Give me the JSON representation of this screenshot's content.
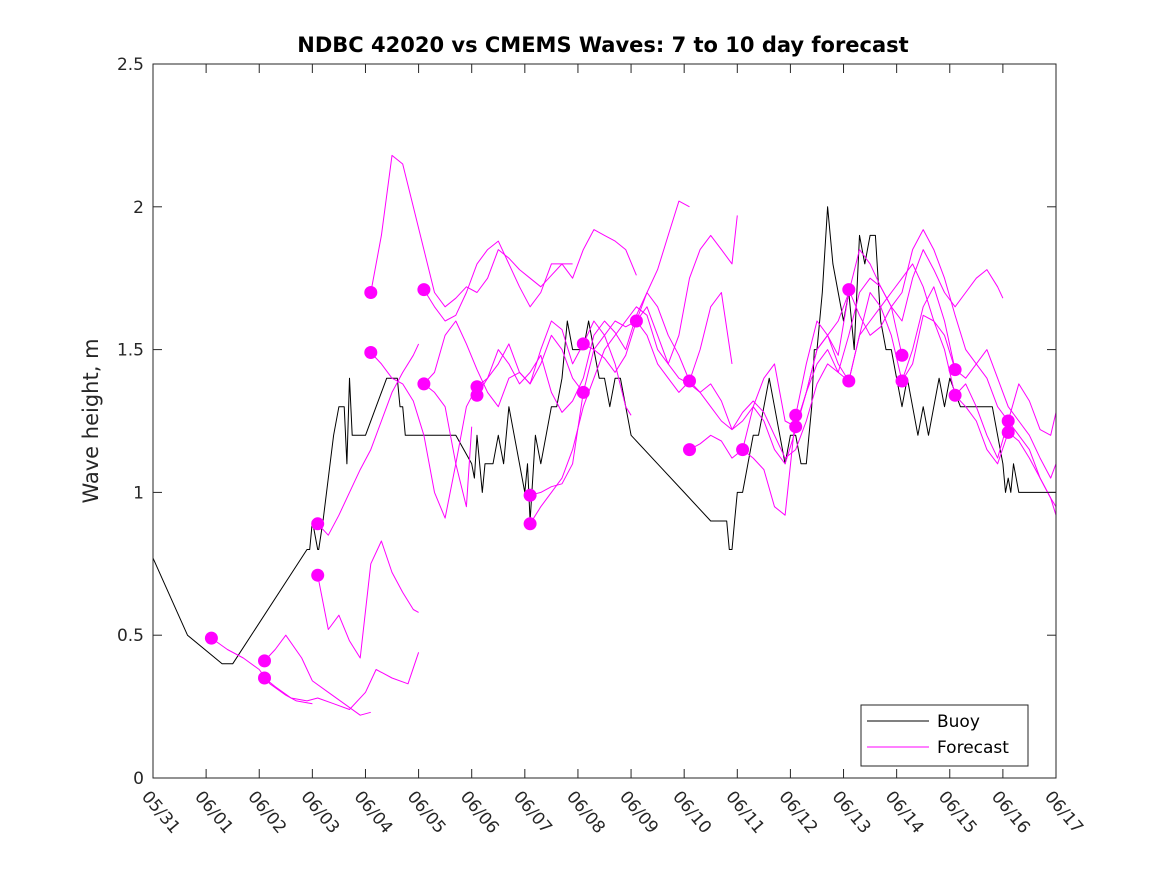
{
  "chart_data": {
    "type": "line",
    "title": "NDBC 42020 vs CMEMS Waves: 7 to 10 day forecast",
    "xlabel": "",
    "ylabel": "Wave height, m",
    "xlim": [
      "05/31",
      "06/17"
    ],
    "ylim": [
      0,
      2.5
    ],
    "x_tick_labels": [
      "05/31",
      "06/01",
      "06/02",
      "06/03",
      "06/04",
      "06/05",
      "06/06",
      "06/07",
      "06/08",
      "06/09",
      "06/10",
      "06/11",
      "06/12",
      "06/13",
      "06/14",
      "06/15",
      "06/16",
      "06/17"
    ],
    "y_tick_labels": [
      "0",
      "0.5",
      "1",
      "1.5",
      "2",
      "2.5"
    ],
    "y_ticks": [
      0,
      0.5,
      1,
      1.5,
      2,
      2.5
    ],
    "x_unit_note": "x values are days in June 2024 (05/31 = 0, 06/01 = 1, ...)",
    "grid": false,
    "legend": {
      "placement": "bottom-right",
      "entries": [
        "Buoy",
        "Forecast"
      ]
    },
    "colors": {
      "buoy": "#000000",
      "forecast": "#ff00ff"
    },
    "series": [
      {
        "name": "Buoy",
        "x": [
          0,
          0.65,
          1.3,
          1.5,
          2.9,
          2.95,
          3.0,
          3.1,
          3.12,
          3.2,
          3.4,
          3.5,
          3.6,
          3.65,
          3.7,
          3.75,
          3.85,
          3.9,
          4.0,
          4.2,
          4.4,
          4.6,
          4.65,
          4.7,
          4.75,
          4.8,
          4.85,
          5.0,
          5.2,
          5.4,
          5.5,
          5.7,
          6.0,
          6.05,
          6.1,
          6.2,
          6.25,
          6.3,
          6.4,
          6.5,
          6.6,
          6.7,
          6.8,
          6.9,
          7.0,
          7.05,
          7.1,
          7.2,
          7.3,
          7.4,
          7.5,
          7.6,
          7.7,
          7.8,
          7.9,
          8.0,
          8.1,
          8.2,
          8.3,
          8.4,
          8.5,
          8.6,
          8.7,
          8.8,
          9.0,
          9.5,
          10.0,
          10.5,
          10.8,
          10.85,
          10.9,
          10.95,
          11.0,
          11.1,
          11.2,
          11.3,
          11.4,
          11.5,
          11.6,
          11.7,
          11.8,
          11.9,
          12.0,
          12.1,
          12.2,
          12.3,
          12.4,
          12.45,
          12.5,
          12.6,
          12.7,
          12.8,
          12.9,
          13.0,
          13.1,
          13.2,
          13.3,
          13.4,
          13.5,
          13.6,
          13.7,
          13.8,
          13.9,
          14.0,
          14.1,
          14.2,
          14.3,
          14.4,
          14.5,
          14.6,
          14.7,
          14.8,
          14.9,
          15.0,
          15.2,
          15.4,
          15.6,
          15.8,
          15.9,
          16.0,
          16.05,
          16.1,
          16.15,
          16.2,
          16.3,
          16.4,
          16.6,
          17.0
        ],
        "values": [
          0.77,
          0.5,
          0.4,
          0.4,
          0.8,
          0.8,
          0.9,
          0.8,
          0.8,
          0.9,
          1.2,
          1.3,
          1.3,
          1.1,
          1.4,
          1.2,
          1.2,
          1.2,
          1.2,
          1.3,
          1.4,
          1.4,
          1.3,
          1.3,
          1.2,
          1.2,
          1.2,
          1.2,
          1.2,
          1.2,
          1.2,
          1.2,
          1.1,
          1.05,
          1.2,
          1.0,
          1.1,
          1.1,
          1.1,
          1.2,
          1.1,
          1.3,
          1.2,
          1.1,
          1.0,
          1.1,
          0.9,
          1.2,
          1.1,
          1.2,
          1.3,
          1.3,
          1.4,
          1.6,
          1.5,
          1.5,
          1.5,
          1.6,
          1.5,
          1.4,
          1.4,
          1.3,
          1.4,
          1.4,
          1.2,
          1.1,
          1.0,
          0.9,
          0.9,
          0.8,
          0.8,
          0.9,
          1.0,
          1.0,
          1.1,
          1.2,
          1.2,
          1.3,
          1.4,
          1.3,
          1.2,
          1.1,
          1.2,
          1.2,
          1.1,
          1.1,
          1.3,
          1.5,
          1.5,
          1.7,
          2.0,
          1.8,
          1.7,
          1.6,
          1.7,
          1.5,
          1.9,
          1.8,
          1.9,
          1.9,
          1.6,
          1.5,
          1.5,
          1.4,
          1.3,
          1.4,
          1.3,
          1.2,
          1.3,
          1.2,
          1.3,
          1.4,
          1.3,
          1.4,
          1.3,
          1.3,
          1.3,
          1.3,
          1.2,
          1.1,
          1.0,
          1.05,
          1.0,
          1.1,
          1.0,
          1.0,
          1.0,
          1.0
        ]
      },
      {
        "name": "Forecast",
        "x": [
          1.1,
          1.4,
          1.7,
          2.0,
          2.2,
          2.5,
          2.7,
          3.0
        ],
        "values": [
          0.49,
          0.45,
          0.42,
          0.38,
          0.33,
          0.29,
          0.27,
          0.26
        ]
      },
      {
        "x": [
          2.1,
          2.3,
          2.5,
          2.8,
          3.0,
          3.3,
          3.6,
          3.9,
          4.1
        ],
        "values": [
          0.41,
          0.45,
          0.5,
          0.42,
          0.34,
          0.3,
          0.26,
          0.22,
          0.23
        ]
      },
      {
        "x": [
          2.1,
          2.3,
          2.6,
          2.9,
          3.1,
          3.4,
          3.7,
          4.0,
          4.2,
          4.5,
          4.8,
          5.0
        ],
        "values": [
          0.35,
          0.32,
          0.28,
          0.27,
          0.28,
          0.26,
          0.24,
          0.3,
          0.38,
          0.35,
          0.33,
          0.44
        ]
      },
      {
        "x": [
          3.1,
          3.3,
          3.5,
          3.7,
          3.9,
          4.1,
          4.3,
          4.5,
          4.7,
          4.9,
          5.0
        ],
        "values": [
          0.71,
          0.52,
          0.57,
          0.48,
          0.42,
          0.75,
          0.83,
          0.72,
          0.65,
          0.59,
          0.58
        ]
      },
      {
        "x": [
          3.1,
          3.3,
          3.5,
          3.7,
          3.9,
          4.1,
          4.3,
          4.5,
          4.7,
          4.9,
          5.0
        ],
        "values": [
          0.89,
          0.85,
          0.92,
          1.0,
          1.08,
          1.15,
          1.25,
          1.35,
          1.42,
          1.48,
          1.52
        ]
      },
      {
        "x": [
          4.1,
          4.3,
          4.5,
          4.7,
          4.9,
          5.1,
          5.3,
          5.5,
          5.7,
          5.9,
          6.1,
          6.3,
          6.5,
          6.7,
          6.9,
          7.1,
          7.3,
          7.5,
          7.7,
          7.9
        ],
        "values": [
          1.7,
          1.9,
          2.18,
          2.15,
          2.0,
          1.85,
          1.7,
          1.65,
          1.68,
          1.72,
          1.7,
          1.75,
          1.85,
          1.82,
          1.78,
          1.75,
          1.72,
          1.76,
          1.8,
          1.8
        ]
      },
      {
        "x": [
          4.1,
          4.3,
          4.5,
          4.7,
          4.9,
          5.1,
          5.3,
          5.5,
          5.7,
          5.9,
          6.1,
          6.3,
          6.5,
          6.7,
          6.9,
          7.1,
          7.3,
          7.5,
          7.7,
          7.9,
          8.1,
          8.3,
          8.5,
          8.7,
          8.9,
          9.0
        ],
        "values": [
          1.49,
          1.45,
          1.4,
          1.38,
          1.32,
          1.2,
          1.0,
          0.91,
          1.1,
          1.3,
          1.37,
          1.4,
          1.45,
          1.52,
          1.42,
          1.38,
          1.5,
          1.6,
          1.57,
          1.45,
          1.52,
          1.6,
          1.55,
          1.45,
          1.3,
          1.27
        ]
      },
      {
        "x": [
          5.1,
          5.3,
          5.5,
          5.7,
          5.9,
          6.1,
          6.3,
          6.5,
          6.7,
          6.9,
          7.1,
          7.3,
          7.5,
          7.7,
          7.9,
          8.1,
          8.3,
          8.5,
          8.7,
          8.9,
          9.1
        ],
        "values": [
          1.71,
          1.65,
          1.6,
          1.62,
          1.7,
          1.8,
          1.85,
          1.88,
          1.8,
          1.72,
          1.65,
          1.7,
          1.8,
          1.8,
          1.75,
          1.85,
          1.92,
          1.9,
          1.88,
          1.85,
          1.76
        ]
      },
      {
        "x": [
          5.1,
          5.3,
          5.5,
          5.7,
          5.9,
          6.1,
          6.3,
          6.5,
          6.7,
          6.9,
          7.1,
          7.3,
          7.5,
          7.7,
          7.9,
          8.1
        ],
        "values": [
          1.38,
          1.42,
          1.55,
          1.6,
          1.52,
          1.43,
          1.35,
          1.3,
          1.4,
          1.42,
          1.38,
          1.45,
          1.55,
          1.5,
          1.4,
          1.35
        ]
      },
      {
        "x": [
          5.1,
          5.3,
          5.5,
          5.7,
          5.9,
          6.0
        ],
        "values": [
          1.38,
          1.35,
          1.3,
          1.1,
          0.95,
          1.23
        ]
      },
      {
        "x": [
          6.1,
          6.3,
          6.5,
          6.7,
          6.9,
          7.1,
          7.3,
          7.5,
          7.7,
          7.9,
          8.1,
          8.3,
          8.5,
          8.7,
          8.9,
          9.1,
          9.3,
          9.5,
          9.7,
          9.9,
          10.1
        ],
        "values": [
          1.34,
          1.4,
          1.5,
          1.45,
          1.38,
          1.42,
          1.48,
          1.35,
          1.28,
          1.32,
          1.4,
          1.55,
          1.6,
          1.56,
          1.5,
          1.62,
          1.7,
          1.78,
          1.9,
          2.02,
          2.0
        ]
      },
      {
        "x": [
          7.1,
          7.3,
          7.5,
          7.7,
          7.9,
          8.1,
          8.3,
          8.5,
          8.7,
          8.9,
          9.1,
          9.3,
          9.5,
          9.7,
          9.9,
          10.1,
          10.3,
          10.5,
          10.7,
          10.9,
          11.0
        ],
        "values": [
          0.89,
          0.95,
          1.0,
          1.05,
          1.15,
          1.3,
          1.4,
          1.5,
          1.55,
          1.6,
          1.65,
          1.62,
          1.5,
          1.45,
          1.55,
          1.75,
          1.85,
          1.9,
          1.85,
          1.8,
          1.97
        ]
      },
      {
        "x": [
          7.1,
          7.3,
          7.5,
          7.7,
          7.9,
          8.1,
          8.3,
          8.5,
          8.7,
          8.9,
          9.1,
          9.3,
          9.5,
          9.7,
          9.9,
          10.1,
          10.3,
          10.5,
          10.7,
          10.9
        ],
        "values": [
          0.99,
          1.0,
          1.02,
          1.03,
          1.1,
          1.35,
          1.5,
          1.55,
          1.6,
          1.58,
          1.6,
          1.55,
          1.45,
          1.4,
          1.35,
          1.39,
          1.5,
          1.65,
          1.7,
          1.45
        ]
      },
      {
        "x": [
          8.1,
          8.3,
          8.5,
          8.7,
          8.9,
          9.1,
          9.3,
          9.5,
          9.7,
          9.9,
          10.1,
          10.3,
          10.5,
          10.7,
          10.9,
          11.1,
          11.3,
          11.5,
          11.7,
          11.9,
          12.1,
          12.3,
          12.5,
          12.7,
          12.9,
          13.1
        ],
        "values": [
          1.52,
          1.5,
          1.47,
          1.42,
          1.48,
          1.6,
          1.65,
          1.55,
          1.45,
          1.4,
          1.38,
          1.35,
          1.38,
          1.32,
          1.22,
          1.25,
          1.3,
          1.25,
          1.15,
          1.1,
          1.22,
          1.35,
          1.5,
          1.55,
          1.6,
          1.7
        ]
      },
      {
        "x": [
          9.1,
          9.3,
          9.5,
          9.7,
          9.9,
          10.1,
          10.3,
          10.5,
          10.7,
          10.9,
          11.1,
          11.3,
          11.5,
          11.7,
          11.9,
          12.1,
          12.3,
          12.5,
          12.7,
          12.9,
          13.1,
          13.3,
          13.5,
          13.7,
          13.9,
          14.1
        ],
        "values": [
          1.6,
          1.7,
          1.65,
          1.55,
          1.48,
          1.39,
          1.35,
          1.3,
          1.25,
          1.22,
          1.28,
          1.32,
          1.28,
          1.2,
          1.12,
          1.15,
          1.25,
          1.38,
          1.45,
          1.42,
          1.55,
          1.7,
          1.75,
          1.72,
          1.65,
          1.48
        ]
      },
      {
        "x": [
          10.1,
          10.3,
          10.5,
          10.7,
          10.9,
          11.1,
          11.3,
          11.5,
          11.7,
          11.9,
          12.1,
          12.3,
          12.5,
          12.7,
          12.9,
          13.1,
          13.3,
          13.5,
          13.7,
          13.9,
          14.1,
          14.3,
          14.5,
          14.7,
          14.9,
          15.1
        ],
        "values": [
          1.15,
          1.17,
          1.2,
          1.18,
          1.12,
          1.15,
          1.3,
          1.4,
          1.45,
          1.25,
          1.23,
          1.35,
          1.5,
          1.55,
          1.45,
          1.39,
          1.55,
          1.7,
          1.65,
          1.55,
          1.39,
          1.45,
          1.62,
          1.6,
          1.55,
          1.43
        ]
      },
      {
        "x": [
          11.1,
          11.3,
          11.5,
          11.7,
          11.9,
          12.1,
          12.3,
          12.5,
          12.7,
          12.9,
          13.1,
          13.3,
          13.5,
          13.7,
          13.9,
          14.1,
          14.3,
          14.5,
          14.7,
          14.9,
          15.1,
          15.3,
          15.5,
          15.7,
          15.9,
          16.0
        ],
        "values": [
          1.15,
          1.12,
          1.08,
          0.95,
          0.92,
          1.27,
          1.45,
          1.6,
          1.55,
          1.48,
          1.7,
          1.85,
          1.8,
          1.72,
          1.65,
          1.6,
          1.75,
          1.85,
          1.78,
          1.7,
          1.65,
          1.7,
          1.75,
          1.78,
          1.72,
          1.68
        ]
      },
      {
        "x": [
          12.1,
          12.3,
          12.5,
          12.7,
          12.9,
          13.1,
          13.3,
          13.5,
          13.7,
          13.9,
          14.1,
          14.3,
          14.5,
          14.7,
          14.9,
          15.1,
          15.3,
          15.5,
          15.7,
          15.9,
          16.1
        ],
        "values": [
          1.23,
          1.35,
          1.45,
          1.5,
          1.42,
          1.39,
          1.55,
          1.6,
          1.65,
          1.7,
          1.75,
          1.8,
          1.72,
          1.6,
          1.5,
          1.34,
          1.3,
          1.25,
          1.15,
          1.1,
          1.21
        ]
      },
      {
        "x": [
          13.1,
          13.3,
          13.5,
          13.7,
          13.9,
          14.1,
          14.3,
          14.5,
          14.7,
          14.9,
          15.1,
          15.3,
          15.5,
          15.7,
          15.9,
          16.1,
          16.3,
          16.5,
          16.7,
          16.9,
          17.0
        ],
        "values": [
          1.71,
          1.62,
          1.55,
          1.58,
          1.65,
          1.7,
          1.85,
          1.92,
          1.85,
          1.75,
          1.62,
          1.5,
          1.45,
          1.5,
          1.4,
          1.3,
          1.25,
          1.2,
          1.12,
          1.05,
          1.1
        ]
      },
      {
        "x": [
          14.1,
          14.3,
          14.5,
          14.7,
          14.9,
          15.1,
          15.3,
          15.5,
          15.7,
          15.9,
          16.1,
          16.3,
          16.5,
          16.7,
          16.9,
          17.0
        ],
        "values": [
          1.39,
          1.5,
          1.65,
          1.72,
          1.6,
          1.43,
          1.4,
          1.45,
          1.4,
          1.3,
          1.25,
          1.2,
          1.15,
          1.05,
          0.98,
          0.95
        ]
      },
      {
        "x": [
          15.1,
          15.3,
          15.5,
          15.7,
          15.9,
          16.1,
          16.3,
          16.5,
          16.7,
          16.9,
          17.0
        ],
        "values": [
          1.34,
          1.38,
          1.3,
          1.2,
          1.12,
          1.25,
          1.38,
          1.32,
          1.22,
          1.2,
          1.28
        ]
      },
      {
        "x": [
          16.1,
          16.3,
          16.5,
          16.7,
          16.9,
          17.0
        ],
        "values": [
          1.21,
          1.18,
          1.12,
          1.05,
          0.98,
          0.92
        ]
      }
    ],
    "forecast_start_markers": {
      "x": [
        1.1,
        2.1,
        2.1,
        3.1,
        3.1,
        4.1,
        4.1,
        5.1,
        5.1,
        6.1,
        6.1,
        7.1,
        7.1,
        8.1,
        8.1,
        9.1,
        10.1,
        10.1,
        11.1,
        12.1,
        12.1,
        13.1,
        13.1,
        14.1,
        14.1,
        15.1,
        15.1,
        16.1,
        16.1
      ],
      "values": [
        0.49,
        0.41,
        0.35,
        0.89,
        0.71,
        1.7,
        1.49,
        1.71,
        1.38,
        1.37,
        1.34,
        0.99,
        0.89,
        1.52,
        1.35,
        1.6,
        1.39,
        1.15,
        1.15,
        1.27,
        1.23,
        1.71,
        1.39,
        1.48,
        1.39,
        1.43,
        1.34,
        1.25,
        1.21
      ]
    }
  }
}
